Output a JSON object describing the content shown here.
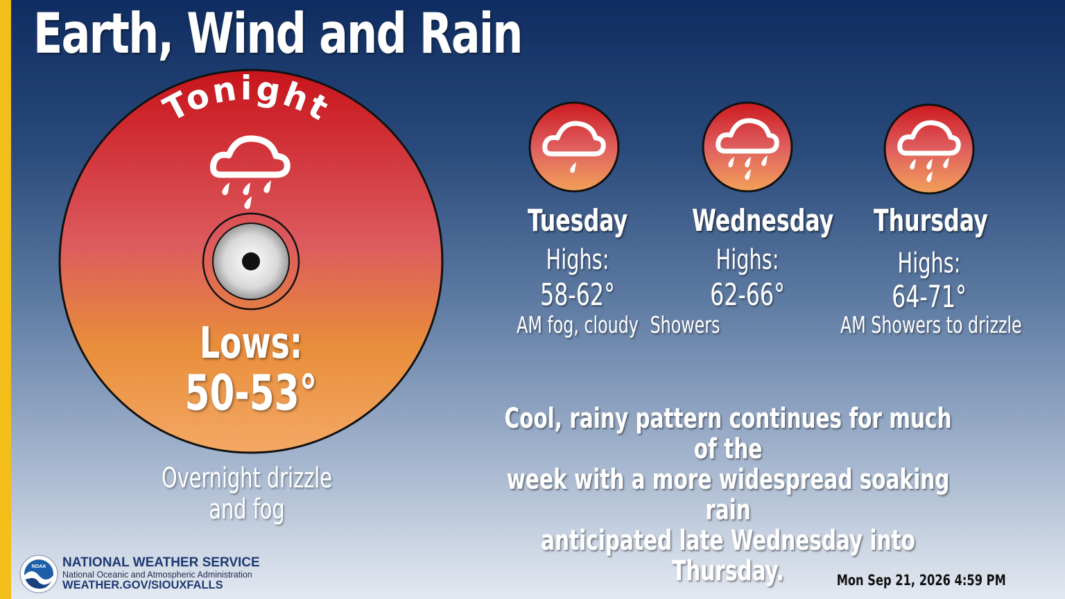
{
  "title": "Earth, Wind and Rain",
  "tonight": {
    "heading": "Tonight",
    "icon": "rain-cloud-icon",
    "lows_label": "Lows:",
    "lows_value": "50-53°",
    "description_line1": "Overnight drizzle",
    "description_line2": "and fog"
  },
  "days": [
    {
      "name": "Tuesday",
      "icon": "light-rain-cloud-icon",
      "highs_label": "Highs:",
      "highs_value": "58-62°",
      "description": "AM fog, cloudy"
    },
    {
      "name": "Wednesday",
      "icon": "rain-cloud-icon",
      "highs_label": "Highs:",
      "highs_value": "62-66°",
      "description": "Showers"
    },
    {
      "name": "Thursday",
      "icon": "rain-cloud-icon",
      "highs_label": "Highs:",
      "highs_value": "64-71°",
      "description": "AM Showers to drizzle"
    }
  ],
  "summary": {
    "line1": "Cool, rainy pattern continues for much of the",
    "line2": "week with a more widespread soaking rain",
    "line3": "anticipated late Wednesday into Thursday."
  },
  "footer": {
    "logo_text": "NOAA",
    "agency": "NATIONAL WEATHER SERVICE",
    "parent_agency": "National Oceanic and Atmospheric Administration",
    "url": "WEATHER.GOV/SIOUXFALLS",
    "timestamp": "Mon Sep 21, 2026 4:59 PM"
  },
  "colors": {
    "accent_bar": "#f3bd1a",
    "disc_top": "#c8141b",
    "disc_bottom": "#f4a65e",
    "text": "#ffffff"
  }
}
